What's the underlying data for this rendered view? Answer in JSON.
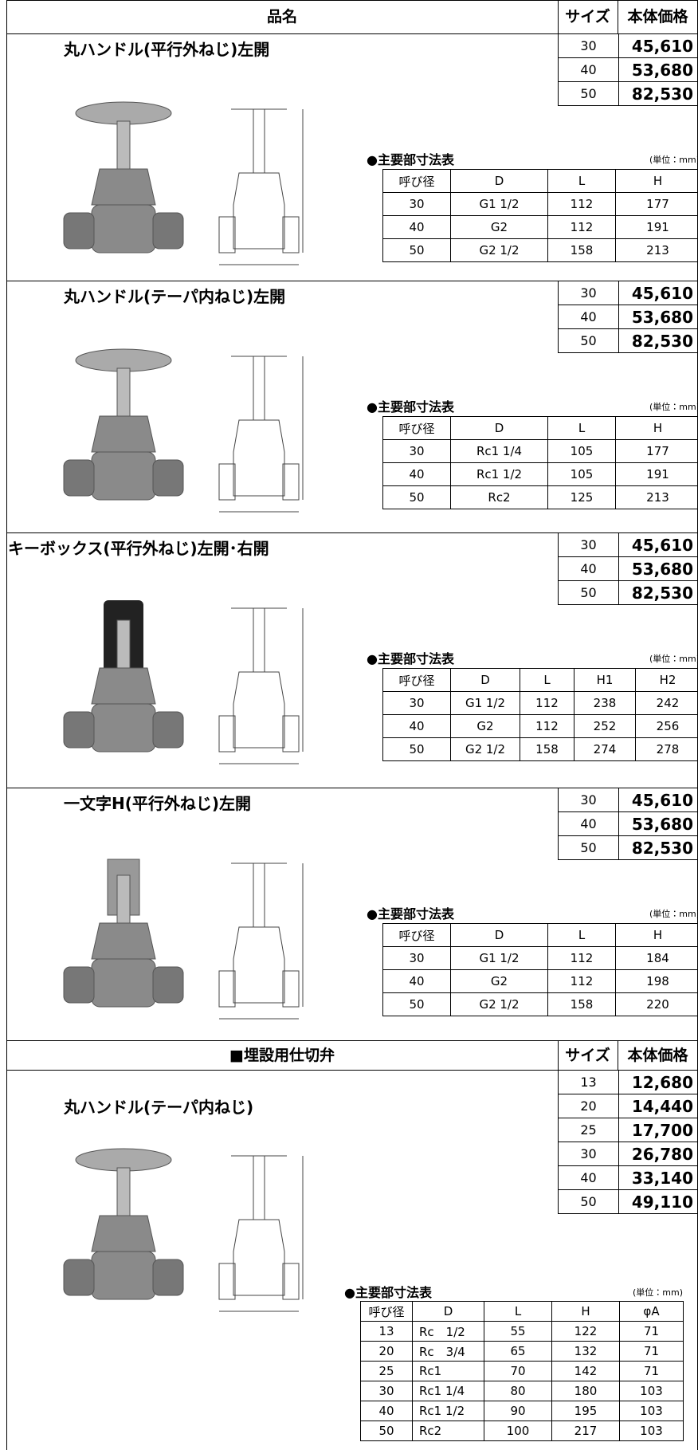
{
  "header": {
    "product": "品名",
    "size": "サイズ",
    "price": "本体価格"
  },
  "sections": [
    {
      "title": "丸ハンドル(平行外ねじ)左開",
      "prices": [
        {
          "size": "30",
          "price": "45,610"
        },
        {
          "size": "40",
          "price": "53,680"
        },
        {
          "size": "50",
          "price": "82,530"
        }
      ],
      "dimensions": {
        "caption": "●主要部寸法表",
        "unit": "(単位：mm)",
        "columns": [
          "呼び径",
          "D",
          "L",
          "H"
        ],
        "rows": [
          [
            "30",
            "G1 1/2",
            "112",
            "177"
          ],
          [
            "40",
            "G2",
            "112",
            "191"
          ],
          [
            "50",
            "G2 1/2",
            "158",
            "213"
          ]
        ]
      }
    },
    {
      "title": "丸ハンドル(テーパ内ねじ)左開",
      "prices": [
        {
          "size": "30",
          "price": "45,610"
        },
        {
          "size": "40",
          "price": "53,680"
        },
        {
          "size": "50",
          "price": "82,530"
        }
      ],
      "dimensions": {
        "caption": "●主要部寸法表",
        "unit": "(単位：mm)",
        "columns": [
          "呼び径",
          "D",
          "L",
          "H"
        ],
        "rows": [
          [
            "30",
            "Rc1 1/4",
            "105",
            "177"
          ],
          [
            "40",
            "Rc1 1/2",
            "105",
            "191"
          ],
          [
            "50",
            "Rc2",
            "125",
            "213"
          ]
        ]
      }
    },
    {
      "title": "キーボックス(平行外ねじ)左開･右開",
      "prices": [
        {
          "size": "30",
          "price": "45,610"
        },
        {
          "size": "40",
          "price": "53,680"
        },
        {
          "size": "50",
          "price": "82,530"
        }
      ],
      "dimensions": {
        "caption": "●主要部寸法表",
        "unit": "(単位：mm)",
        "columns": [
          "呼び径",
          "D",
          "L",
          "H1",
          "H2"
        ],
        "rows": [
          [
            "30",
            "G1 1/2",
            "112",
            "238",
            "242"
          ],
          [
            "40",
            "G2",
            "112",
            "252",
            "256"
          ],
          [
            "50",
            "G2 1/2",
            "158",
            "274",
            "278"
          ]
        ]
      }
    },
    {
      "title": "一文字H(平行外ねじ)左開",
      "prices": [
        {
          "size": "30",
          "price": "45,610"
        },
        {
          "size": "40",
          "price": "53,680"
        },
        {
          "size": "50",
          "price": "82,530"
        }
      ],
      "dimensions": {
        "caption": "●主要部寸法表",
        "unit": "(単位：mm)",
        "columns": [
          "呼び径",
          "D",
          "L",
          "H"
        ],
        "rows": [
          [
            "30",
            "G1 1/2",
            "112",
            "184"
          ],
          [
            "40",
            "G2",
            "112",
            "198"
          ],
          [
            "50",
            "G2 1/2",
            "158",
            "220"
          ]
        ]
      }
    }
  ],
  "buried": {
    "heading": "■埋設用仕切弁",
    "size": "サイズ",
    "price": "本体価格",
    "title": "丸ハンドル(テーパ内ねじ)",
    "prices": [
      {
        "size": "13",
        "price": "12,680"
      },
      {
        "size": "20",
        "price": "14,440"
      },
      {
        "size": "25",
        "price": "17,700"
      },
      {
        "size": "30",
        "price": "26,780"
      },
      {
        "size": "40",
        "price": "33,140"
      },
      {
        "size": "50",
        "price": "49,110"
      }
    ],
    "dimensions": {
      "caption": "●主要部寸法表",
      "unit": "(単位：mm)",
      "columns": [
        "呼び径",
        "D",
        "L",
        "H",
        "φA"
      ],
      "rows": [
        [
          "13",
          "Rc　1/2",
          "55",
          "122",
          "71"
        ],
        [
          "20",
          "Rc　3/4",
          "65",
          "132",
          "71"
        ],
        [
          "25",
          "Rc1",
          "70",
          "142",
          "71"
        ],
        [
          "30",
          "Rc1 1/4",
          "80",
          "180",
          "103"
        ],
        [
          "40",
          "Rc1 1/2",
          "90",
          "195",
          "103"
        ],
        [
          "50",
          "Rc2",
          "100",
          "217",
          "103"
        ]
      ]
    }
  }
}
